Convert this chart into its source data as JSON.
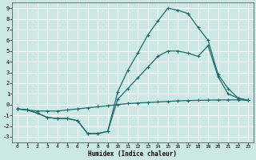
{
  "xlabel": "Humidex (Indice chaleur)",
  "bg_color": "#cce8e5",
  "grid_color": "#b8d8d5",
  "line_color": "#1a6b6b",
  "xlim": [
    -0.5,
    23.5
  ],
  "ylim": [
    -3.5,
    9.5
  ],
  "xticks": [
    0,
    1,
    2,
    3,
    4,
    5,
    6,
    7,
    8,
    9,
    10,
    11,
    12,
    13,
    14,
    15,
    16,
    17,
    18,
    19,
    20,
    21,
    22,
    23
  ],
  "yticks": [
    -3,
    -2,
    -1,
    0,
    1,
    2,
    3,
    4,
    5,
    6,
    7,
    8,
    9
  ],
  "line1_x": [
    0,
    1,
    2,
    3,
    4,
    5,
    6,
    7,
    8,
    9,
    10,
    11,
    12,
    13,
    14,
    15,
    16,
    17,
    18,
    19,
    20,
    21,
    22,
    23
  ],
  "line1_y": [
    -0.4,
    -0.5,
    -0.6,
    -0.6,
    -0.6,
    -0.5,
    -0.4,
    -0.3,
    -0.2,
    -0.1,
    0.0,
    0.1,
    0.15,
    0.2,
    0.25,
    0.3,
    0.35,
    0.38,
    0.4,
    0.42,
    0.43,
    0.44,
    0.45,
    0.4
  ],
  "line2_x": [
    0,
    1,
    2,
    3,
    4,
    5,
    6,
    7,
    8,
    9,
    10,
    11,
    12,
    13,
    14,
    15,
    16,
    17,
    18,
    19,
    20,
    21,
    22,
    23
  ],
  "line2_y": [
    -0.4,
    -0.5,
    -0.8,
    -1.2,
    -1.3,
    -1.3,
    -1.5,
    -2.7,
    -2.7,
    -2.5,
    0.5,
    1.5,
    2.5,
    3.5,
    4.5,
    5.0,
    5.0,
    4.8,
    4.5,
    5.5,
    2.6,
    1.0,
    0.6,
    0.4
  ],
  "line3_x": [
    0,
    1,
    2,
    3,
    4,
    5,
    6,
    7,
    8,
    9,
    10,
    11,
    12,
    13,
    14,
    15,
    16,
    17,
    18,
    19,
    20,
    21,
    22,
    23
  ],
  "line3_y": [
    -0.4,
    -0.5,
    -0.8,
    -1.2,
    -1.3,
    -1.3,
    -1.5,
    -2.7,
    -2.7,
    -2.5,
    1.2,
    3.2,
    4.8,
    6.5,
    7.8,
    9.0,
    8.8,
    8.5,
    7.2,
    6.0,
    2.8,
    1.5,
    0.6,
    0.4
  ]
}
